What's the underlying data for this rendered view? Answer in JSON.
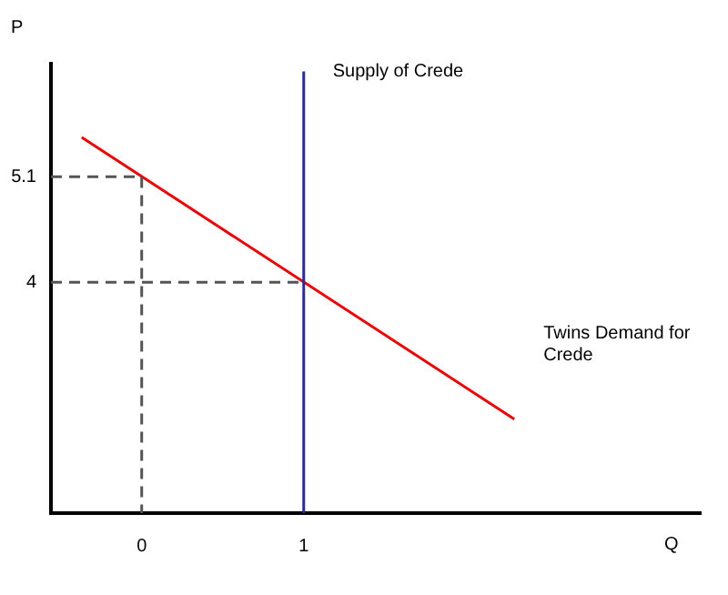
{
  "chart_data": {
    "type": "line",
    "xlabel": "Q",
    "ylabel": "P",
    "xlim": [
      -0.56,
      3.45
    ],
    "ylim": [
      1.59,
      6.28
    ],
    "xticks": [
      0,
      1
    ],
    "yticks": [
      4,
      5.1
    ],
    "grid": false,
    "legend": false,
    "series": [
      {
        "x": [
          -0.56,
          0,
          0
        ],
        "values": [
          5.1,
          5.1,
          1.59
        ],
        "color": "#555555",
        "line_style": "dashed"
      },
      {
        "x": [
          -0.56,
          1
        ],
        "values": [
          4,
          4
        ],
        "color": "#555555",
        "line_style": "dashed"
      },
      {
        "name": "Supply of Crede",
        "x": [
          1,
          1
        ],
        "values": [
          1.59,
          6.2
        ],
        "color": "#2b2b9a",
        "line_style": "solid"
      },
      {
        "name": "Twins Demand for Crede",
        "x": [
          -0.37,
          2.3
        ],
        "values": [
          5.51,
          2.57
        ],
        "color": "#ee0000",
        "line_style": "solid"
      }
    ]
  }
}
